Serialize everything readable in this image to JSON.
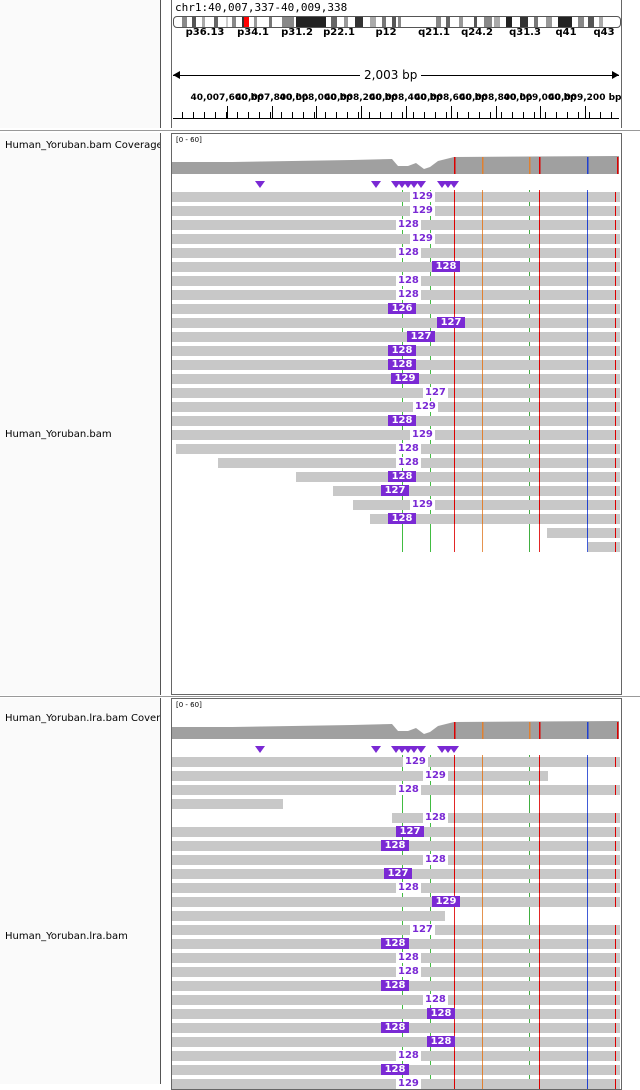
{
  "header": {
    "locus": "chr1:40,007,337-40,009,338",
    "span": "2,003 bp",
    "cytobands": [
      "p36.13",
      "p34.1",
      "p31.2",
      "p22.1",
      "p12",
      "q21.1",
      "q24.2",
      "q31.3",
      "q41",
      "q43"
    ],
    "ruler_ticks": [
      "40,007,600 bp",
      "40,007,800 bp",
      "40,008,000 bp",
      "40,008,200 bp",
      "40,008,400 bp",
      "40,008,600 bp",
      "40,008,800 bp",
      "40,009,000 bp",
      "40,009,200 bp"
    ]
  },
  "panels": [
    {
      "coverage_label": "Human_Yoruban.bam Coverage",
      "coverage_range": "[0 - 60]",
      "alignment_label": "Human_Yoruban.bam",
      "insertions": [
        "129",
        "129",
        "128",
        "129",
        "128",
        "128",
        "128",
        "128",
        "126",
        "127",
        "127",
        "128",
        "128",
        "129",
        "127",
        "129",
        "128",
        "129",
        "128",
        "128",
        "128",
        "127",
        "129",
        "128"
      ]
    },
    {
      "coverage_label": "Human_Yoruban.lra.bam Coverage",
      "coverage_range": "[0 - 60]",
      "alignment_label": "Human_Yoruban.lra.bam",
      "insertions": [
        "129",
        "129",
        "128",
        "128",
        "127",
        "128",
        "128",
        "127",
        "128",
        "129",
        "127",
        "128",
        "128",
        "128",
        "128",
        "128",
        "128",
        "128",
        "128",
        "128",
        "128",
        "129"
      ]
    }
  ],
  "colors": {
    "insertion": "#7a29d4",
    "read": "#c8c8c8",
    "coverage": "#a0a0a0"
  }
}
